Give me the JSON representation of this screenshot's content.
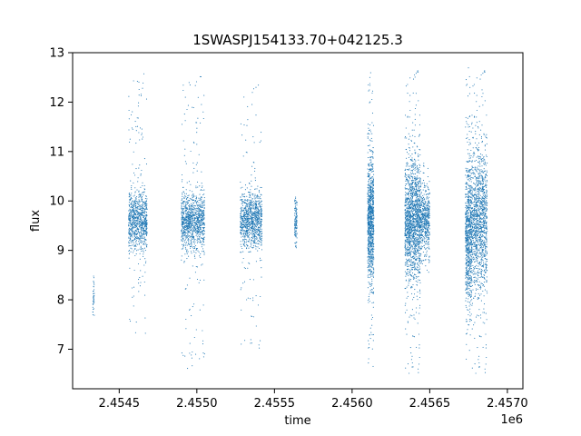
{
  "chart_data": {
    "type": "scatter",
    "title": "1SWASPJ154133.70+042125.3",
    "xlabel": "time",
    "ylabel": "flux",
    "x_offset_label": "1e6",
    "xlim": [
      2454200,
      2457100
    ],
    "ylim": [
      6.2,
      13.0
    ],
    "x_ticks": [
      2454500,
      2455000,
      2455500,
      2456000,
      2456500,
      2457000
    ],
    "x_tick_labels": [
      "2.4545",
      "2.4550",
      "2.4555",
      "2.4560",
      "2.4565",
      "2.4570"
    ],
    "y_ticks": [
      7,
      8,
      9,
      10,
      11,
      12,
      13
    ],
    "y_tick_labels": [
      "7",
      "8",
      "9",
      "10",
      "11",
      "12",
      "13"
    ],
    "grid": false,
    "marker_color": "#1f77b4",
    "series": [
      {
        "clusters": [
          {
            "x_start": 2454330,
            "x_end": 2454340,
            "y_center": 8.1,
            "core_spread": 0.25,
            "tail_min": 7.6,
            "tail_max": 8.7,
            "n": 40
          },
          {
            "x_start": 2454560,
            "x_end": 2454680,
            "y_center": 9.6,
            "core_spread": 0.3,
            "tail_min": 7.3,
            "tail_max": 12.6,
            "n": 900
          },
          {
            "x_start": 2454900,
            "x_end": 2455050,
            "y_center": 9.6,
            "core_spread": 0.28,
            "tail_min": 6.6,
            "tail_max": 12.6,
            "n": 1100
          },
          {
            "x_start": 2455280,
            "x_end": 2455420,
            "y_center": 9.6,
            "core_spread": 0.28,
            "tail_min": 7.0,
            "tail_max": 12.4,
            "n": 1000
          },
          {
            "x_start": 2455630,
            "x_end": 2455645,
            "y_center": 9.6,
            "core_spread": 0.2,
            "tail_min": 9.0,
            "tail_max": 10.2,
            "n": 120
          },
          {
            "x_start": 2456100,
            "x_end": 2456140,
            "y_center": 9.6,
            "core_spread": 0.6,
            "tail_min": 6.5,
            "tail_max": 12.6,
            "n": 1000
          },
          {
            "x_start": 2456340,
            "x_end": 2456440,
            "y_center": 9.6,
            "core_spread": 0.6,
            "tail_min": 6.5,
            "tail_max": 12.7,
            "n": 1600
          },
          {
            "x_start": 2456440,
            "x_end": 2456500,
            "y_center": 9.6,
            "core_spread": 0.3,
            "tail_min": 8.5,
            "tail_max": 10.8,
            "n": 500
          },
          {
            "x_start": 2456730,
            "x_end": 2456770,
            "y_center": 9.3,
            "core_spread": 0.7,
            "tail_min": 6.8,
            "tail_max": 12.7,
            "n": 800
          },
          {
            "x_start": 2456770,
            "x_end": 2456870,
            "y_center": 9.6,
            "core_spread": 0.7,
            "tail_min": 6.5,
            "tail_max": 12.7,
            "n": 1300
          }
        ]
      }
    ]
  }
}
